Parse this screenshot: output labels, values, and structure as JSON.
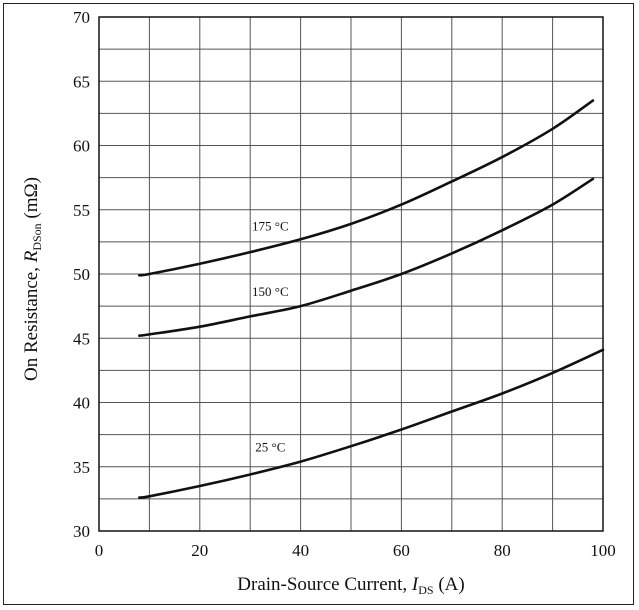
{
  "chart_data": {
    "type": "line",
    "title": "",
    "xlabel": {
      "prefix": "Drain-Source Current, ",
      "symbol": "I",
      "subscript": "DS",
      "suffix": " (A)"
    },
    "ylabel": {
      "prefix": "On Resistance, ",
      "symbol": "R",
      "subscript": "DSon",
      "suffix": " (mΩ)"
    },
    "xlim": [
      0,
      100
    ],
    "ylim": [
      30,
      70
    ],
    "x_ticks": [
      0,
      20,
      40,
      60,
      80,
      100
    ],
    "y_ticks": [
      30,
      35,
      40,
      45,
      50,
      55,
      60,
      65,
      70
    ],
    "grid": true,
    "grid_x_step": 10,
    "grid_y_step": 2.5,
    "legend": "none",
    "series": [
      {
        "name": "175 °C",
        "x": [
          8,
          10,
          20,
          30,
          40,
          50,
          60,
          70,
          80,
          90,
          98
        ],
        "y": [
          49.9,
          50.0,
          50.8,
          51.7,
          52.7,
          53.9,
          55.4,
          57.2,
          59.1,
          61.3,
          63.5
        ]
      },
      {
        "name": "150 °C",
        "x": [
          8,
          10,
          20,
          30,
          40,
          50,
          60,
          70,
          80,
          90,
          98
        ],
        "y": [
          45.2,
          45.3,
          45.9,
          46.7,
          47.5,
          48.7,
          50.0,
          51.6,
          53.4,
          55.4,
          57.4
        ]
      },
      {
        "name": "25 °C",
        "x": [
          8,
          10,
          20,
          30,
          40,
          50,
          60,
          70,
          80,
          90,
          100
        ],
        "y": [
          32.6,
          32.7,
          33.5,
          34.4,
          35.4,
          36.6,
          37.9,
          39.3,
          40.7,
          42.3,
          44.1
        ]
      }
    ],
    "annotations": [
      {
        "text": "175 °C",
        "x": 34,
        "y": 53.4
      },
      {
        "text": "150 °C",
        "x": 34,
        "y": 48.3
      },
      {
        "text": "25 °C",
        "x": 34,
        "y": 36.2
      }
    ]
  }
}
